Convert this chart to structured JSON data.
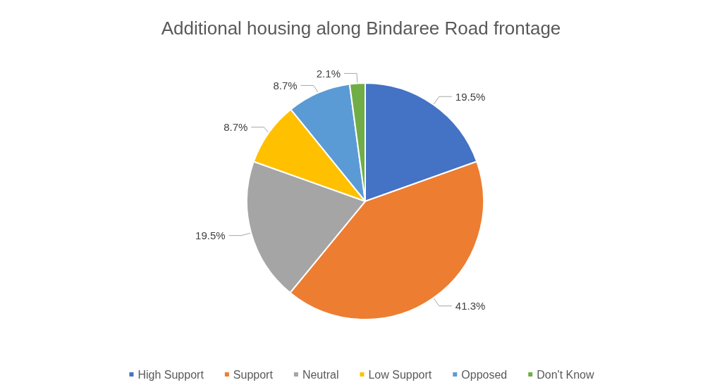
{
  "chart_data": {
    "type": "pie",
    "title": "Additional housing along Bindaree Road frontage",
    "categories": [
      "High Support",
      "Support",
      "Neutral",
      "Low Support",
      "Opposed",
      "Don't Know"
    ],
    "values": [
      19.5,
      41.3,
      19.5,
      8.7,
      8.7,
      2.1
    ],
    "colors": [
      "#4472c4",
      "#ed7d31",
      "#a5a5a5",
      "#ffc000",
      "#5b9bd5",
      "#70ad47"
    ],
    "value_labels": [
      "19.5%",
      "41.3%",
      "19.5%",
      "8.7%",
      "8.7%",
      "2.1%"
    ],
    "legend": "bottom"
  }
}
